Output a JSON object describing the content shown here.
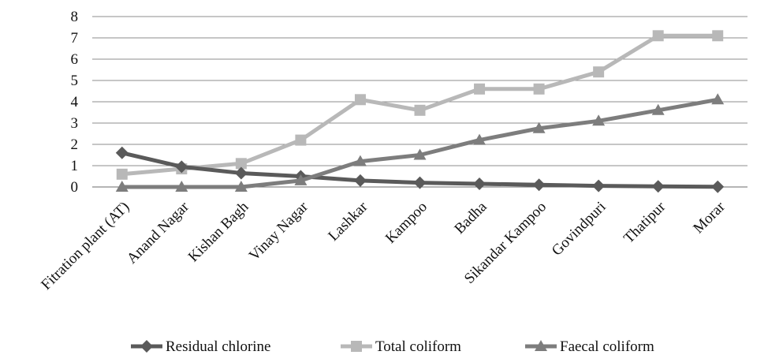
{
  "chart_data": {
    "type": "line",
    "title": "",
    "xlabel": "",
    "ylabel": "",
    "ylim": [
      0,
      8
    ],
    "yticks": [
      0,
      1,
      2,
      3,
      4,
      5,
      6,
      7,
      8
    ],
    "grid": true,
    "legend_position": "bottom",
    "categories": [
      "Fitration plant (AT)",
      "Anand Nagar",
      "Kishan Bagh",
      "Vinay Nagar",
      "Lashkar",
      "Kampoo",
      "Badha",
      "Sikandar Kampoo",
      "Govindpuri",
      "Thatipur",
      "Morar"
    ],
    "series": [
      {
        "name": "Residual chlorine",
        "marker": "diamond",
        "color": "#5a5a5a",
        "values": [
          1.6,
          0.95,
          0.65,
          0.5,
          0.3,
          0.2,
          0.15,
          0.1,
          0.05,
          0.03,
          0.01
        ]
      },
      {
        "name": "Total coliform",
        "marker": "square",
        "color": "#b8b8b8",
        "values": [
          0.6,
          0.85,
          1.1,
          2.2,
          4.1,
          3.6,
          4.6,
          4.6,
          5.4,
          7.1,
          7.1
        ]
      },
      {
        "name": "Faecal coliform",
        "marker": "triangle",
        "color": "#7d7d7d",
        "values": [
          0,
          0,
          0,
          0.3,
          1.2,
          1.5,
          2.2,
          2.75,
          3.1,
          3.6,
          4.1
        ]
      }
    ]
  }
}
